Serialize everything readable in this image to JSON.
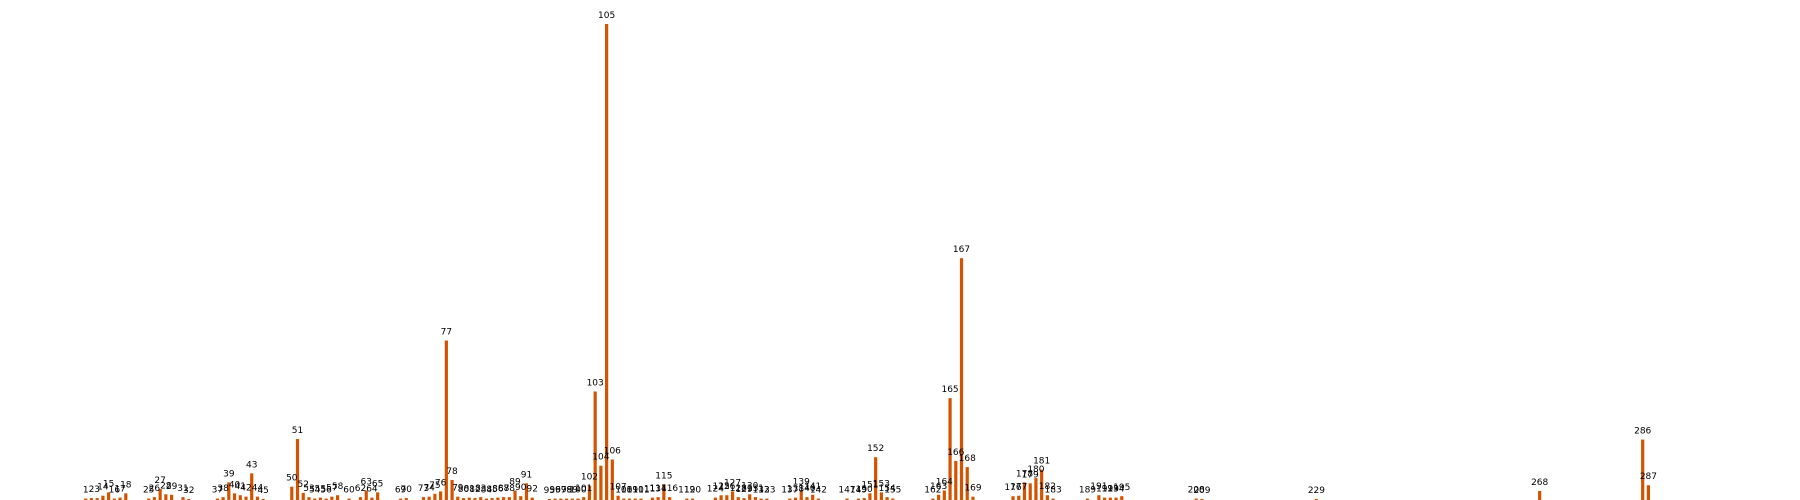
{
  "chart_data": {
    "type": "bar",
    "color": "#d35400",
    "x_range": [
      0,
      290
    ],
    "ylim": [
      0,
      100
    ],
    "grid": false,
    "legend": "none",
    "points": [
      {
        "x": 1,
        "label": "1",
        "v": 0.3
      },
      {
        "x": 2,
        "label": "2",
        "v": 0.4
      },
      {
        "x": 3,
        "label": "3",
        "v": 0.4
      },
      {
        "x": 4,
        "label": "14",
        "v": 0.9
      },
      {
        "x": 5,
        "label": "15",
        "v": 1.6
      },
      {
        "x": 6,
        "label": "16",
        "v": 0.3
      },
      {
        "x": 7,
        "label": "17",
        "v": 0.5
      },
      {
        "x": 8,
        "label": "18",
        "v": 1.4
      },
      {
        "x": 12,
        "label": "25",
        "v": 0.3
      },
      {
        "x": 13,
        "label": "26",
        "v": 0.6
      },
      {
        "x": 14,
        "label": "27",
        "v": 2.3
      },
      {
        "x": 15,
        "label": "28",
        "v": 1.2
      },
      {
        "x": 16,
        "label": "29",
        "v": 1.1
      },
      {
        "x": 18,
        "label": "31",
        "v": 0.6
      },
      {
        "x": 19,
        "label": "32",
        "v": 0.2
      },
      {
        "x": 24,
        "label": "37",
        "v": 0.3
      },
      {
        "x": 25,
        "label": "38",
        "v": 0.6
      },
      {
        "x": 26,
        "label": "39",
        "v": 3.7
      },
      {
        "x": 27,
        "label": "40",
        "v": 1.4
      },
      {
        "x": 28,
        "label": "41",
        "v": 1.0
      },
      {
        "x": 29,
        "label": "42",
        "v": 0.7
      },
      {
        "x": 30,
        "label": "43",
        "v": 5.6
      },
      {
        "x": 31,
        "label": "44",
        "v": 0.7
      },
      {
        "x": 32,
        "label": "45",
        "v": 0.2
      },
      {
        "x": 37,
        "label": "50",
        "v": 2.8
      },
      {
        "x": 38,
        "label": "51",
        "v": 12.8
      },
      {
        "x": 39,
        "label": "52",
        "v": 1.5
      },
      {
        "x": 40,
        "label": "53",
        "v": 0.6
      },
      {
        "x": 41,
        "label": "54",
        "v": 0.3
      },
      {
        "x": 42,
        "label": "55",
        "v": 0.5
      },
      {
        "x": 43,
        "label": "56",
        "v": 0.3
      },
      {
        "x": 44,
        "label": "57",
        "v": 0.7
      },
      {
        "x": 45,
        "label": "58",
        "v": 1.0
      },
      {
        "x": 47,
        "label": "60",
        "v": 0.3
      },
      {
        "x": 49,
        "label": "62",
        "v": 0.6
      },
      {
        "x": 50,
        "label": "63",
        "v": 2.0
      },
      {
        "x": 51,
        "label": "64",
        "v": 0.5
      },
      {
        "x": 52,
        "label": "65",
        "v": 1.6
      },
      {
        "x": 56,
        "label": "69",
        "v": 0.3
      },
      {
        "x": 57,
        "label": "70",
        "v": 0.4
      },
      {
        "x": 60,
        "label": "73",
        "v": 0.6
      },
      {
        "x": 61,
        "label": "74",
        "v": 0.7
      },
      {
        "x": 62,
        "label": "75",
        "v": 1.3
      },
      {
        "x": 63,
        "label": "76",
        "v": 1.8
      },
      {
        "x": 64,
        "label": "77",
        "v": 33.5
      },
      {
        "x": 65,
        "label": "78",
        "v": 4.2
      },
      {
        "x": 66,
        "label": "79",
        "v": 0.7
      },
      {
        "x": 67,
        "label": "80",
        "v": 0.4
      },
      {
        "x": 68,
        "label": "81",
        "v": 0.5
      },
      {
        "x": 69,
        "label": "82",
        "v": 0.4
      },
      {
        "x": 70,
        "label": "83",
        "v": 0.6
      },
      {
        "x": 71,
        "label": "84",
        "v": 0.3
      },
      {
        "x": 72,
        "label": "85",
        "v": 0.4
      },
      {
        "x": 73,
        "label": "86",
        "v": 0.5
      },
      {
        "x": 74,
        "label": "87",
        "v": 0.6
      },
      {
        "x": 75,
        "label": "88",
        "v": 0.6
      },
      {
        "x": 76,
        "label": "89",
        "v": 2.0
      },
      {
        "x": 77,
        "label": "90",
        "v": 0.8
      },
      {
        "x": 78,
        "label": "91",
        "v": 3.5
      },
      {
        "x": 79,
        "label": "92",
        "v": 0.5
      },
      {
        "x": 82,
        "label": "95",
        "v": 0.2
      },
      {
        "x": 83,
        "label": "96",
        "v": 0.3
      },
      {
        "x": 84,
        "label": "97",
        "v": 0.3
      },
      {
        "x": 85,
        "label": "98",
        "v": 0.3
      },
      {
        "x": 86,
        "label": "99",
        "v": 0.3
      },
      {
        "x": 87,
        "label": "100",
        "v": 0.3
      },
      {
        "x": 88,
        "label": "101",
        "v": 0.6
      },
      {
        "x": 89,
        "label": "102",
        "v": 3.0
      },
      {
        "x": 90,
        "label": "103",
        "v": 22.8
      },
      {
        "x": 91,
        "label": "104",
        "v": 7.2
      },
      {
        "x": 92,
        "label": "105",
        "v": 100
      },
      {
        "x": 93,
        "label": "106",
        "v": 8.5
      },
      {
        "x": 94,
        "label": "107",
        "v": 0.9
      },
      {
        "x": 95,
        "label": "108",
        "v": 0.3
      },
      {
        "x": 96,
        "label": "109",
        "v": 0.3
      },
      {
        "x": 97,
        "label": "110",
        "v": 0.3
      },
      {
        "x": 98,
        "label": "111",
        "v": 0.3
      },
      {
        "x": 100,
        "label": "113",
        "v": 0.5
      },
      {
        "x": 101,
        "label": "114",
        "v": 0.6
      },
      {
        "x": 102,
        "label": "115",
        "v": 3.3
      },
      {
        "x": 103,
        "label": "116",
        "v": 0.6
      },
      {
        "x": 106,
        "label": "119",
        "v": 0.3
      },
      {
        "x": 107,
        "label": "120",
        "v": 0.3
      },
      {
        "x": 111,
        "label": "124",
        "v": 0.5
      },
      {
        "x": 112,
        "label": "125",
        "v": 1.0
      },
      {
        "x": 113,
        "label": "126",
        "v": 1.0
      },
      {
        "x": 114,
        "label": "127",
        "v": 1.8
      },
      {
        "x": 115,
        "label": "128",
        "v": 0.6
      },
      {
        "x": 116,
        "label": "129",
        "v": 0.4
      },
      {
        "x": 117,
        "label": "130",
        "v": 1.2
      },
      {
        "x": 118,
        "label": "131",
        "v": 0.6
      },
      {
        "x": 119,
        "label": "132",
        "v": 0.3
      },
      {
        "x": 120,
        "label": "133",
        "v": 0.3
      },
      {
        "x": 124,
        "label": "137",
        "v": 0.3
      },
      {
        "x": 125,
        "label": "138",
        "v": 0.5
      },
      {
        "x": 126,
        "label": "139",
        "v": 2.0
      },
      {
        "x": 127,
        "label": "140",
        "v": 0.6
      },
      {
        "x": 128,
        "label": "141",
        "v": 1.1
      },
      {
        "x": 129,
        "label": "142",
        "v": 0.3
      },
      {
        "x": 134,
        "label": "147",
        "v": 0.3
      },
      {
        "x": 136,
        "label": "149",
        "v": 0.3
      },
      {
        "x": 137,
        "label": "150",
        "v": 0.4
      },
      {
        "x": 138,
        "label": "151",
        "v": 1.4
      },
      {
        "x": 139,
        "label": "152",
        "v": 9.0
      },
      {
        "x": 140,
        "label": "153",
        "v": 1.6
      },
      {
        "x": 141,
        "label": "154",
        "v": 0.6
      },
      {
        "x": 142,
        "label": "155",
        "v": 0.3
      },
      {
        "x": 149,
        "label": "162",
        "v": 0.3
      },
      {
        "x": 150,
        "label": "163",
        "v": 1.1
      },
      {
        "x": 151,
        "label": "164",
        "v": 2.0
      },
      {
        "x": 152,
        "label": "165",
        "v": 21.4
      },
      {
        "x": 153,
        "label": "166",
        "v": 8.2
      },
      {
        "x": 154,
        "label": "167",
        "v": 50.8
      },
      {
        "x": 155,
        "label": "168",
        "v": 6.9
      },
      {
        "x": 156,
        "label": "169",
        "v": 0.7
      },
      {
        "x": 163,
        "label": "176",
        "v": 0.8
      },
      {
        "x": 164,
        "label": "177",
        "v": 0.9
      },
      {
        "x": 165,
        "label": "178",
        "v": 3.7
      },
      {
        "x": 166,
        "label": "179",
        "v": 3.5
      },
      {
        "x": 167,
        "label": "180",
        "v": 4.6
      },
      {
        "x": 168,
        "label": "181",
        "v": 6.4
      },
      {
        "x": 169,
        "label": "182",
        "v": 1.0
      },
      {
        "x": 170,
        "label": "183",
        "v": 0.3
      },
      {
        "x": 176,
        "label": "189",
        "v": 0.3
      },
      {
        "x": 178,
        "label": "191",
        "v": 1.0
      },
      {
        "x": 179,
        "label": "192",
        "v": 0.5
      },
      {
        "x": 180,
        "label": "193",
        "v": 0.5
      },
      {
        "x": 181,
        "label": "194",
        "v": 0.5
      },
      {
        "x": 182,
        "label": "195",
        "v": 0.8
      },
      {
        "x": 195,
        "label": "208",
        "v": 0.3
      },
      {
        "x": 196,
        "label": "209",
        "v": 0.2
      },
      {
        "x": 216,
        "label": "229",
        "v": 0.2
      },
      {
        "x": 255,
        "label": "268",
        "v": 1.9
      },
      {
        "x": 273,
        "label": "286",
        "v": 12.7
      },
      {
        "x": 274,
        "label": "287",
        "v": 3.1
      }
    ]
  }
}
